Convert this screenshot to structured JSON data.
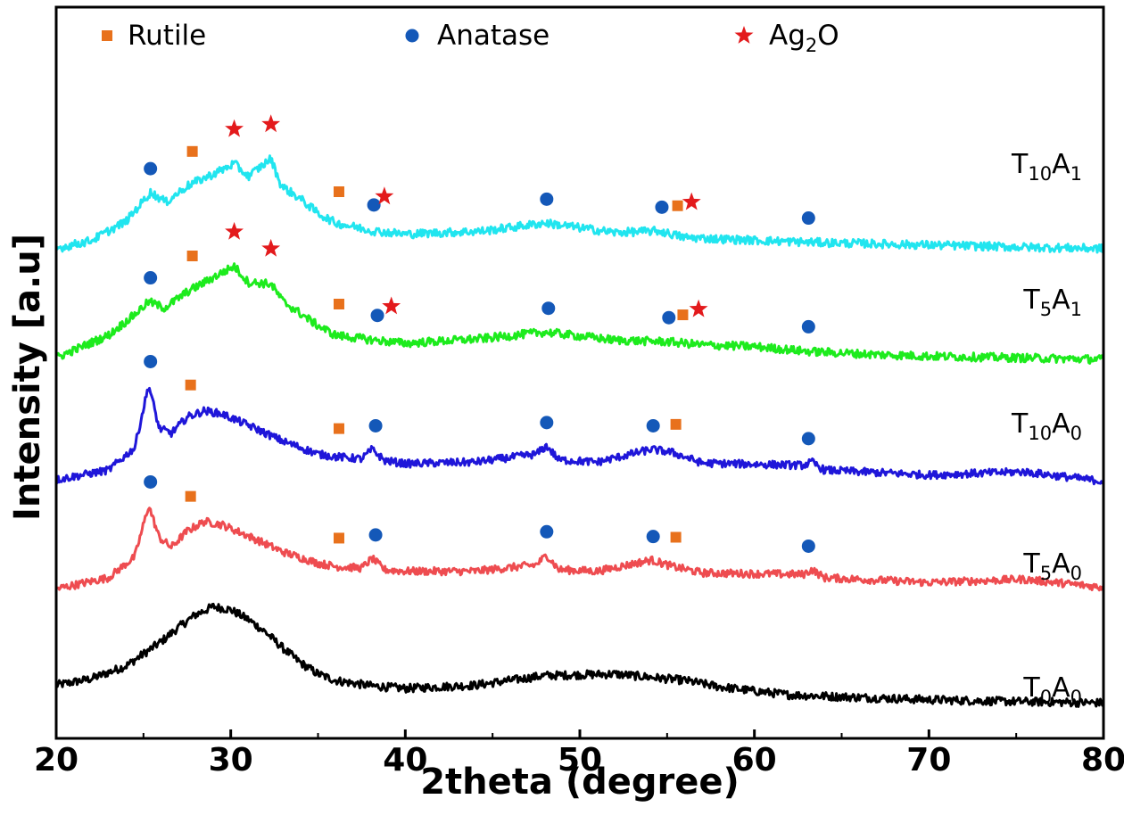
{
  "chart_data": {
    "type": "line",
    "title": "",
    "xlabel": "2theta (degree)",
    "ylabel": "Intensity [a.u]",
    "xlim": [
      20,
      80
    ],
    "x_ticks": [
      "20",
      "30",
      "40",
      "50",
      "60",
      "70",
      "80"
    ],
    "y_ticks_shown": false,
    "grid": false,
    "legend_position": "top",
    "legend": [
      {
        "name": "Rutile",
        "marker": "square",
        "color": "#E8711C"
      },
      {
        "name": "Anatase",
        "marker": "circle",
        "color": "#1458B8"
      },
      {
        "name": "Ag2O",
        "display_main": "Ag",
        "display_sub": "2",
        "display_tail": "O",
        "marker": "star",
        "color": "#E31A1C"
      }
    ],
    "series": [
      {
        "name": "T0A0",
        "display_main1": "T",
        "display_sub1": "0",
        "display_main2": "A",
        "display_sub2": "0",
        "color": "#000000",
        "offset": 0.0,
        "noise": 0.13,
        "x": [
          20,
          22,
          24,
          26,
          27,
          28,
          29,
          30,
          31,
          32,
          33,
          34,
          35,
          36,
          38,
          40,
          44,
          48,
          52,
          56,
          58,
          60,
          62,
          66,
          70,
          74,
          80
        ],
        "value": [
          0.6,
          0.8,
          1.2,
          1.95,
          2.4,
          2.8,
          3.05,
          2.95,
          2.65,
          2.25,
          1.75,
          1.3,
          0.95,
          0.75,
          0.58,
          0.5,
          0.6,
          0.9,
          0.95,
          0.75,
          0.55,
          0.42,
          0.3,
          0.22,
          0.15,
          0.1,
          0.05
        ]
      },
      {
        "name": "T5A0",
        "display_main1": "T",
        "display_sub1": "5",
        "display_main2": "A",
        "display_sub2": "0",
        "color": "#EE4C50",
        "offset": 3.6,
        "noise": 0.12,
        "x": [
          20,
          23,
          24.5,
          25.3,
          25.9,
          26.6,
          27.5,
          28.5,
          29.5,
          31,
          33,
          35,
          36,
          37.5,
          38.1,
          38.8,
          40,
          44,
          47.5,
          48.1,
          48.8,
          51,
          54.1,
          55.3,
          57,
          62.8,
          63.3,
          64,
          70,
          75.4,
          80
        ],
        "value": [
          0.0,
          0.35,
          1.0,
          2.6,
          1.6,
          1.3,
          1.8,
          2.1,
          2.0,
          1.65,
          1.15,
          0.8,
          0.7,
          0.65,
          0.95,
          0.6,
          0.55,
          0.55,
          0.75,
          1.05,
          0.6,
          0.55,
          0.9,
          0.7,
          0.5,
          0.45,
          0.6,
          0.35,
          0.2,
          0.3,
          0.05
        ]
      },
      {
        "name": "T10A0",
        "display_main1": "T",
        "display_sub1": "10",
        "display_main2": "A",
        "display_sub2": "0",
        "color": "#1F16D9",
        "offset": 7.0,
        "noise": 0.12,
        "x": [
          20,
          23,
          24.5,
          25.3,
          25.9,
          26.6,
          27.5,
          28.5,
          29.5,
          31,
          33,
          35,
          36,
          37.5,
          38.1,
          38.8,
          40,
          44,
          47.5,
          48.1,
          48.8,
          51,
          54.1,
          55.3,
          57,
          62.8,
          63.3,
          64,
          70,
          75.4,
          80
        ],
        "value": [
          0.0,
          0.3,
          1.0,
          2.95,
          1.6,
          1.45,
          1.95,
          2.15,
          2.05,
          1.7,
          1.2,
          0.8,
          0.72,
          0.65,
          0.95,
          0.6,
          0.5,
          0.55,
          0.8,
          1.05,
          0.62,
          0.55,
          0.95,
          0.85,
          0.52,
          0.45,
          0.55,
          0.3,
          0.15,
          0.25,
          -0.05
        ]
      },
      {
        "name": "T5A1",
        "display_main1": "T",
        "display_sub1": "5",
        "display_main2": "A",
        "display_sub2": "1",
        "color": "#1DEB1D",
        "offset": 10.8,
        "noise": 0.13,
        "x": [
          20,
          23,
          24.5,
          25.3,
          26.2,
          27.5,
          28.5,
          29.5,
          30.2,
          31,
          32.3,
          33,
          35,
          36,
          38.2,
          40,
          44.5,
          48,
          52,
          55,
          57,
          60,
          63,
          67,
          70,
          75,
          80
        ],
        "value": [
          0.0,
          0.7,
          1.35,
          1.75,
          1.55,
          2.05,
          2.35,
          2.65,
          2.85,
          2.35,
          2.3,
          1.75,
          1.0,
          0.7,
          0.55,
          0.45,
          0.6,
          0.8,
          0.55,
          0.5,
          0.4,
          0.35,
          0.2,
          0.1,
          0.05,
          0.0,
          -0.05
        ]
      },
      {
        "name": "T10A1",
        "display_main1": "T",
        "display_sub1": "10",
        "display_main2": "A",
        "display_sub2": "1",
        "color": "#21E5EF",
        "offset": 14.2,
        "noise": 0.13,
        "x": [
          20,
          22,
          24,
          25.4,
          26.3,
          27.5,
          28.5,
          29.5,
          30.2,
          31,
          32.3,
          32.9,
          34,
          35,
          36,
          38.2,
          40,
          44.5,
          48,
          52,
          54.5,
          56,
          58,
          63,
          67,
          75,
          80
        ],
        "value": [
          0.0,
          0.25,
          0.85,
          1.75,
          1.45,
          1.95,
          2.2,
          2.45,
          2.65,
          2.25,
          2.8,
          1.95,
          1.55,
          1.1,
          0.8,
          0.55,
          0.45,
          0.55,
          0.8,
          0.5,
          0.55,
          0.35,
          0.3,
          0.2,
          0.15,
          0.05,
          0.0
        ]
      }
    ],
    "phase_markers": [
      {
        "series": "T10A1",
        "rutile": [
          27.8,
          36.2,
          55.6
        ],
        "anatase": [
          25.4,
          38.2,
          48.1,
          54.7,
          63.1
        ],
        "ag2o": [
          30.2,
          32.3,
          38.8,
          56.4
        ]
      },
      {
        "series": "T5A1",
        "rutile": [
          27.8,
          36.2,
          55.9
        ],
        "anatase": [
          25.4,
          38.4,
          48.2,
          55.1,
          63.1
        ],
        "ag2o": [
          30.2,
          32.3,
          39.2,
          56.8
        ]
      },
      {
        "series": "T10A0",
        "rutile": [
          27.7,
          36.2,
          55.5
        ],
        "anatase": [
          25.4,
          38.3,
          48.1,
          54.2,
          63.1
        ],
        "ag2o": []
      },
      {
        "series": "T5A0",
        "rutile": [
          27.7,
          36.2,
          55.5
        ],
        "anatase": [
          25.4,
          38.3,
          48.1,
          54.2,
          63.1
        ],
        "ag2o": []
      }
    ]
  }
}
